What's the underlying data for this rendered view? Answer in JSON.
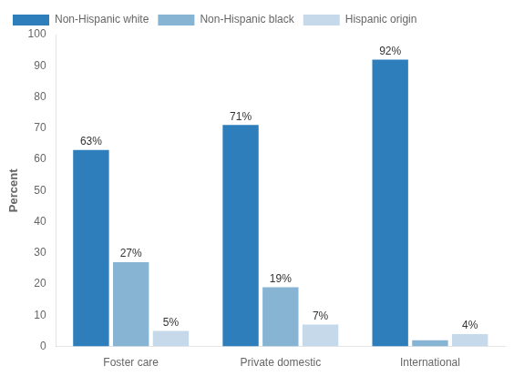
{
  "chart_data": {
    "type": "bar",
    "categories": [
      "Foster care",
      "Private domestic",
      "International"
    ],
    "series": [
      {
        "name": "Non-Hispanic white",
        "color": "#2E7EBC",
        "values": [
          63,
          71,
          92
        ],
        "value_labels": [
          "63%",
          "71%",
          "92%"
        ]
      },
      {
        "name": "Non-Hispanic black",
        "color": "#88B4D4",
        "values": [
          27,
          19,
          2
        ],
        "value_labels": [
          "27%",
          "19%",
          null
        ]
      },
      {
        "name": "Hispanic origin",
        "color": "#C5D9EA",
        "values": [
          5,
          7,
          4
        ],
        "value_labels": [
          "5%",
          "7%",
          "4%"
        ]
      }
    ],
    "ylabel": "Percent",
    "ylim": [
      0,
      100
    ],
    "yticks": [
      0,
      10,
      20,
      30,
      40,
      50,
      60,
      70,
      80,
      90,
      100
    ],
    "grid": false,
    "legend": "upper left",
    "data_labels": true
  }
}
